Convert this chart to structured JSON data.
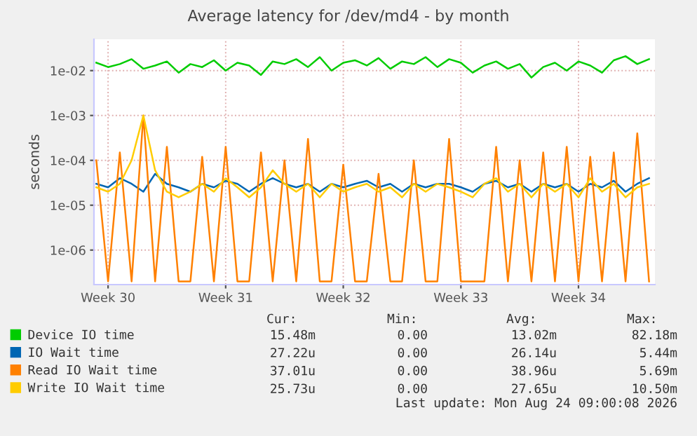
{
  "chart_data": {
    "type": "line",
    "title": "Average latency for /dev/md4 - by month",
    "ylabel": "seconds",
    "log": "y",
    "grid": true,
    "legend": "bottom",
    "marker": "none",
    "line_style": "solid",
    "categories": [
      null,
      "Week 30",
      null,
      null,
      null,
      null,
      null,
      null,
      null,
      null,
      null,
      "Week 31",
      null,
      null,
      null,
      null,
      null,
      null,
      null,
      null,
      null,
      "Week 32",
      null,
      null,
      null,
      null,
      null,
      null,
      null,
      null,
      null,
      "Week 33",
      null,
      null,
      null,
      null,
      null,
      null,
      null,
      null,
      null,
      "Week 34",
      null,
      null,
      null,
      null,
      null,
      null
    ],
    "ylim": [
      1.7e-07,
      0.05
    ],
    "yticks": [
      {
        "value": 1e-06,
        "label": "1e-06"
      },
      {
        "value": 1e-05,
        "label": "1e-05"
      },
      {
        "value": 0.0001,
        "label": "1e-04"
      },
      {
        "value": 0.001,
        "label": "1e-03"
      },
      {
        "value": 0.01,
        "label": "1e-02"
      }
    ],
    "series": [
      {
        "name": "Device IO time",
        "color": "#00cc00",
        "values": [
          0.015,
          0.012,
          0.014,
          0.018,
          0.011,
          0.013,
          0.016,
          0.009,
          0.014,
          0.012,
          0.017,
          0.01,
          0.015,
          0.013,
          0.008,
          0.016,
          0.014,
          0.018,
          0.012,
          0.02,
          0.01,
          0.015,
          0.017,
          0.013,
          0.019,
          0.011,
          0.016,
          0.014,
          0.02,
          0.012,
          0.018,
          0.015,
          0.009,
          0.013,
          0.016,
          0.011,
          0.014,
          0.007,
          0.012,
          0.015,
          0.01,
          0.016,
          0.013,
          0.009,
          0.017,
          0.021,
          0.014,
          0.018
        ]
      },
      {
        "name": "IO Wait time",
        "color": "#0066b3",
        "values": [
          3e-05,
          2.5e-05,
          4e-05,
          3e-05,
          2e-05,
          5e-05,
          3e-05,
          2.5e-05,
          2e-05,
          3e-05,
          2.5e-05,
          3.5e-05,
          3e-05,
          2e-05,
          3e-05,
          4e-05,
          3e-05,
          2.5e-05,
          3e-05,
          2e-05,
          3e-05,
          2.5e-05,
          3e-05,
          3.5e-05,
          2.5e-05,
          3e-05,
          2e-05,
          3e-05,
          2.5e-05,
          3e-05,
          3e-05,
          2.5e-05,
          2e-05,
          3e-05,
          3.5e-05,
          2.5e-05,
          3e-05,
          2e-05,
          3e-05,
          2.5e-05,
          3e-05,
          2e-05,
          3e-05,
          2.5e-05,
          3.5e-05,
          2e-05,
          3e-05,
          4e-05
        ]
      },
      {
        "name": "Read IO Wait time",
        "color": "#ff8000",
        "values": [
          0.0001,
          2e-07,
          0.00015,
          2e-07,
          0.001,
          2e-07,
          0.0002,
          2e-07,
          2e-07,
          0.00012,
          2e-07,
          0.0002,
          2e-07,
          2e-07,
          0.00015,
          2e-07,
          0.0001,
          2e-07,
          0.0003,
          2e-07,
          2e-07,
          8e-05,
          2e-07,
          2e-07,
          5e-05,
          2e-07,
          2e-07,
          0.0001,
          2e-07,
          2e-07,
          0.0003,
          2e-07,
          2e-07,
          2e-07,
          0.0002,
          2e-07,
          0.0001,
          2e-07,
          0.00015,
          2e-07,
          0.0002,
          2e-07,
          0.00012,
          2e-07,
          0.00015,
          2e-07,
          0.0004,
          2e-07
        ]
      },
      {
        "name": "Write IO Wait time",
        "color": "#ffcc00",
        "values": [
          2.5e-05,
          2e-05,
          3e-05,
          0.0001,
          0.001,
          6e-05,
          2e-05,
          1.5e-05,
          2e-05,
          3e-05,
          2e-05,
          4e-05,
          2.5e-05,
          1.5e-05,
          2.5e-05,
          6e-05,
          3e-05,
          2e-05,
          3e-05,
          1.5e-05,
          3e-05,
          2e-05,
          2.5e-05,
          3e-05,
          2e-05,
          2.5e-05,
          1.5e-05,
          3e-05,
          2e-05,
          3e-05,
          2.5e-05,
          2e-05,
          1.5e-05,
          3e-05,
          4e-05,
          2e-05,
          3e-05,
          1.5e-05,
          3e-05,
          2e-05,
          3e-05,
          1.5e-05,
          4e-05,
          2e-05,
          3e-05,
          1.5e-05,
          2.5e-05,
          3e-05
        ]
      }
    ],
    "annotations": [
      "Cur:",
      "Min:",
      "Avg:",
      "Max:",
      "15.48m",
      "0.00",
      "13.02m",
      "82.18m",
      "27.22u",
      "0.00",
      "26.14u",
      "5.44m",
      "37.01u",
      "0.00",
      "38.96u",
      "5.69m",
      "25.73u",
      "0.00",
      "27.65u",
      "10.50m",
      "Last update: Mon Aug 24 09:00:08 2026"
    ]
  }
}
